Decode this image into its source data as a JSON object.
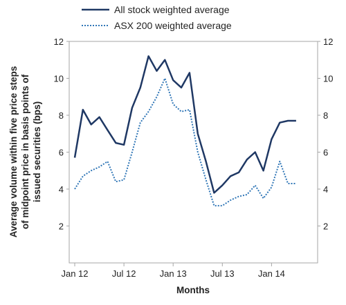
{
  "chart_data": {
    "type": "line",
    "xlabel": "Months",
    "ylabel_lines": [
      "Average volume within five price steps",
      "of midpoint  price in basis points of",
      "issued securities (bps)"
    ],
    "x_ticks": [
      "Jan 12",
      "Jul 12",
      "Jan 13",
      "Jul 13",
      "Jan 14"
    ],
    "y_ticks": [
      "2",
      "4",
      "6",
      "8",
      "10",
      "12"
    ],
    "ylim": [
      0,
      12
    ],
    "secondary_y_axis": true,
    "legend_position": "top",
    "grid": false,
    "x": [
      "2012-01",
      "2012-02",
      "2012-03",
      "2012-04",
      "2012-05",
      "2012-06",
      "2012-07",
      "2012-08",
      "2012-09",
      "2012-10",
      "2012-11",
      "2012-12",
      "2013-01",
      "2013-02",
      "2013-03",
      "2013-04",
      "2013-05",
      "2013-06",
      "2013-07",
      "2013-08",
      "2013-09",
      "2013-10",
      "2013-11",
      "2013-12",
      "2014-01",
      "2014-02",
      "2014-03",
      "2014-04"
    ],
    "series": [
      {
        "name": "All stock weighted average",
        "style": "solid",
        "color": "#1f3864",
        "values": [
          5.7,
          8.3,
          7.5,
          7.9,
          7.2,
          6.5,
          6.4,
          8.4,
          9.5,
          11.2,
          10.4,
          11.0,
          9.9,
          9.5,
          10.3,
          7.0,
          5.5,
          3.8,
          4.2,
          4.7,
          4.9,
          5.6,
          6.0,
          5.0,
          6.7,
          7.6,
          7.7,
          7.7
        ]
      },
      {
        "name": "ASX 200 weighted average",
        "style": "dotted",
        "color": "#2e75b6",
        "values": [
          4.0,
          4.7,
          5.0,
          5.2,
          5.5,
          4.4,
          4.5,
          6.0,
          7.6,
          8.2,
          9.0,
          10.0,
          8.6,
          8.2,
          8.3,
          6.0,
          4.5,
          3.1,
          3.1,
          3.4,
          3.6,
          3.7,
          4.2,
          3.5,
          4.1,
          5.5,
          4.3,
          4.3
        ]
      }
    ]
  }
}
